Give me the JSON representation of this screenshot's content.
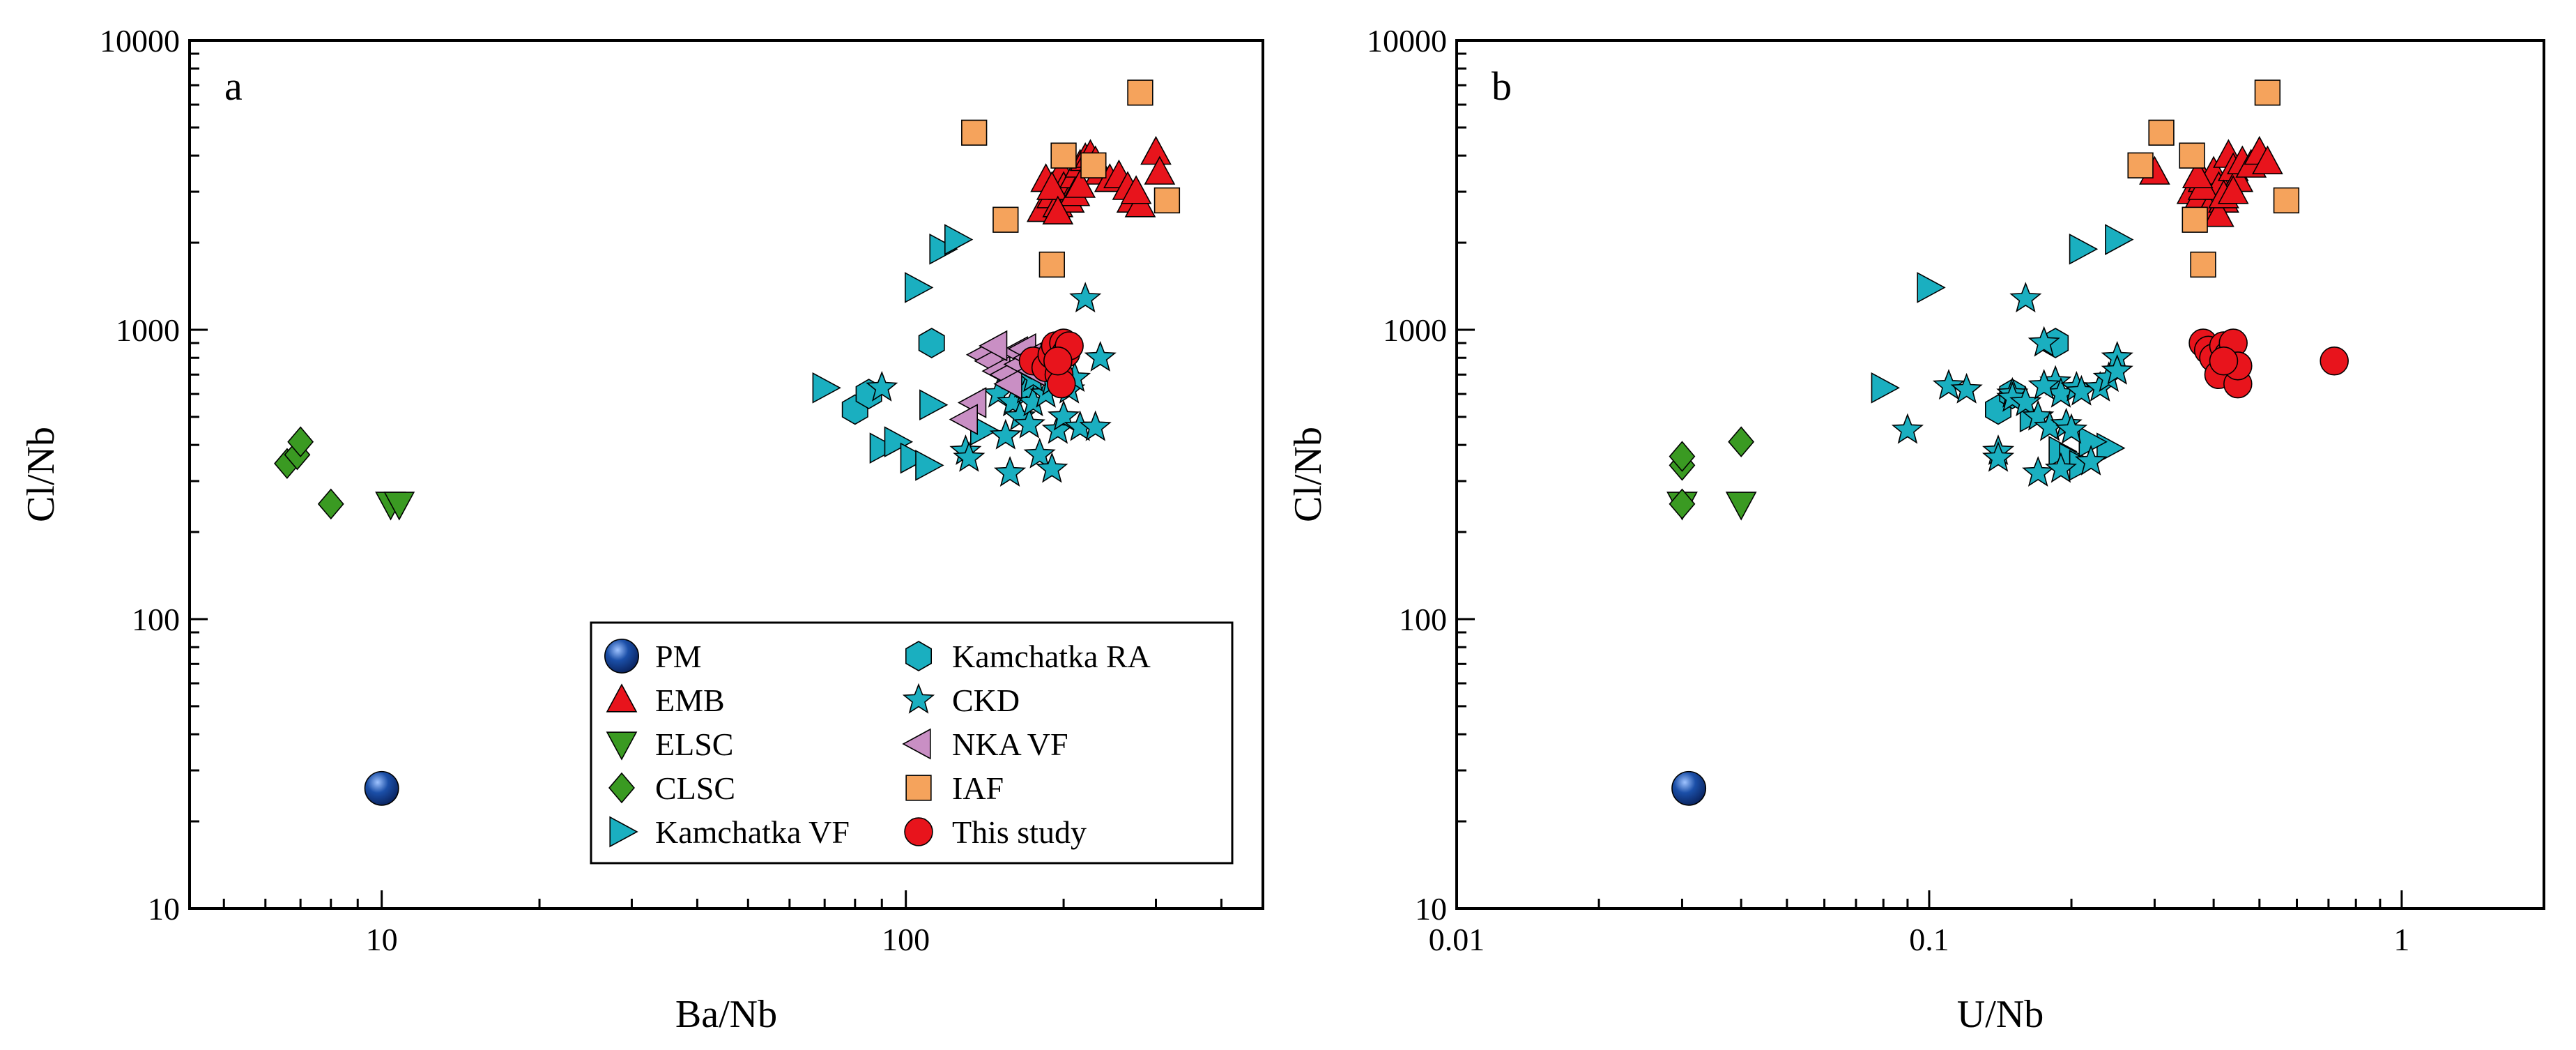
{
  "colors": {
    "PM": "#1b4fa8",
    "EMB": "#e8141c",
    "ELSC": "#3a9a22",
    "CLSC": "#3a9a22",
    "Kamchatka VF": "#1aafc0",
    "Kamchatka RA": "#1aafc0",
    "CKD": "#1aafc0",
    "NKA VF": "#c98fc4",
    "IAF": "#f5a35c",
    "This study": "#e8141c"
  },
  "chart_data": [
    {
      "type": "scatter",
      "panel_label": "a",
      "xlabel": "Ba/Nb",
      "ylabel": "Cl/Nb",
      "xscale": "log",
      "yscale": "log",
      "xlim": [
        4.3,
        480
      ],
      "ylim": [
        10,
        10000
      ],
      "xticks": [
        10,
        100
      ],
      "xticklabels": [
        "10",
        "100"
      ],
      "yticks": [
        10,
        100,
        1000,
        10000
      ],
      "yticklabels": [
        "10",
        "100",
        "1000",
        "10000"
      ],
      "legend": {
        "location": "bottom-right",
        "columns": [
          [
            "PM",
            "EMB",
            "ELSC",
            "CLSC",
            "Kamchatka VF"
          ],
          [
            "Kamchatka RA",
            "CKD",
            "NKA VF",
            "IAF",
            "This study"
          ]
        ]
      },
      "series": [
        {
          "name": "PM",
          "marker": "ball",
          "points": [
            [
              10.0,
              26
            ]
          ]
        },
        {
          "name": "EMB",
          "marker": "triangle-up",
          "points": [
            [
              182,
              2600
            ],
            [
              185,
              3300
            ],
            [
              190,
              2900
            ],
            [
              195,
              2700
            ],
            [
              198,
              3500
            ],
            [
              200,
              3100
            ],
            [
              205,
              2800
            ],
            [
              210,
              3400
            ],
            [
              215,
              3700
            ],
            [
              220,
              3900
            ],
            [
              225,
              4000
            ],
            [
              230,
              3800
            ],
            [
              235,
              3500
            ],
            [
              245,
              3300
            ],
            [
              255,
              3400
            ],
            [
              265,
              3100
            ],
            [
              270,
              2800
            ],
            [
              280,
              2700
            ],
            [
              300,
              4100
            ],
            [
              305,
              3500
            ],
            [
              190,
              3100
            ],
            [
              210,
              2950
            ],
            [
              215,
              3150
            ],
            [
              195,
              2550
            ],
            [
              275,
              3000
            ]
          ]
        },
        {
          "name": "ELSC",
          "marker": "triangle-down",
          "points": [
            [
              10.4,
              250
            ],
            [
              10.8,
              250
            ]
          ]
        },
        {
          "name": "CLSC",
          "marker": "diamond",
          "points": [
            [
              6.6,
              345
            ],
            [
              6.9,
              370
            ],
            [
              7.0,
              410
            ],
            [
              8.0,
              250
            ]
          ]
        },
        {
          "name": "Kamchatka VF",
          "marker": "triangle-right",
          "points": [
            [
              70,
              630
            ],
            [
              90,
              390
            ],
            [
              96,
              410
            ],
            [
              103,
              360
            ],
            [
              105,
              1400
            ],
            [
              110,
              340
            ],
            [
              112,
              550
            ],
            [
              117,
              1900
            ],
            [
              125,
              2050
            ],
            [
              140,
              450
            ]
          ]
        },
        {
          "name": "Kamchatka RA",
          "marker": "hexagon",
          "points": [
            [
              80,
              530
            ],
            [
              85,
              600
            ],
            [
              112,
              900
            ]
          ]
        },
        {
          "name": "CKD",
          "marker": "star",
          "points": [
            [
              90,
              630
            ],
            [
              130,
              380
            ],
            [
              132,
              360
            ],
            [
              150,
              600
            ],
            [
              155,
              430
            ],
            [
              158,
              320
            ],
            [
              160,
              560
            ],
            [
              165,
              500
            ],
            [
              168,
              650
            ],
            [
              170,
              620
            ],
            [
              172,
              470
            ],
            [
              175,
              560
            ],
            [
              180,
              370
            ],
            [
              185,
              600
            ],
            [
              190,
              330
            ],
            [
              195,
              450
            ],
            [
              198,
              830
            ],
            [
              200,
              500
            ],
            [
              205,
              620
            ],
            [
              210,
              680
            ],
            [
              215,
              460
            ],
            [
              220,
              1280
            ],
            [
              230,
              460
            ],
            [
              235,
              800
            ],
            [
              175,
              680
            ],
            [
              190,
              660
            ]
          ]
        },
        {
          "name": "NKA VF",
          "marker": "triangle-left",
          "points": [
            [
              135,
              560
            ],
            [
              140,
              820
            ],
            [
              145,
              780
            ],
            [
              150,
              720
            ],
            [
              155,
              700
            ],
            [
              158,
              650
            ],
            [
              162,
              840
            ],
            [
              165,
              760
            ],
            [
              168,
              860
            ],
            [
              172,
              800
            ],
            [
              175,
              720
            ],
            [
              130,
              490
            ],
            [
              148,
              880
            ]
          ]
        },
        {
          "name": "IAF",
          "marker": "square",
          "points": [
            [
              135,
              4800
            ],
            [
              155,
              2400
            ],
            [
              190,
              1680
            ],
            [
              200,
              4000
            ],
            [
              228,
              3700
            ],
            [
              280,
              6600
            ],
            [
              315,
              2800
            ]
          ]
        },
        {
          "name": "This study",
          "marker": "circle",
          "points": [
            [
              175,
              780
            ],
            [
              185,
              740
            ],
            [
              190,
              820
            ],
            [
              193,
              880
            ],
            [
              196,
              700
            ],
            [
              198,
              650
            ],
            [
              200,
              900
            ],
            [
              202,
              830
            ],
            [
              205,
              880
            ],
            [
              195,
              780
            ]
          ]
        }
      ]
    },
    {
      "type": "scatter",
      "panel_label": "b",
      "xlabel": "U/Nb",
      "ylabel": "Cl/Nb",
      "xscale": "log",
      "yscale": "log",
      "xlim": [
        0.01,
        2.0
      ],
      "ylim": [
        10,
        10000
      ],
      "xticks": [
        0.01,
        0.1,
        1
      ],
      "xticklabels": [
        "0.01",
        "0.1",
        "1"
      ],
      "yticks": [
        10,
        100,
        1000,
        10000
      ],
      "yticklabels": [
        "10",
        "100",
        "1000",
        "10000"
      ],
      "series": [
        {
          "name": "PM",
          "marker": "ball",
          "points": [
            [
              0.031,
              26
            ]
          ]
        },
        {
          "name": "EMB",
          "marker": "triangle-up",
          "points": [
            [
              0.3,
              3500
            ],
            [
              0.36,
              3000
            ],
            [
              0.37,
              2800
            ],
            [
              0.38,
              3300
            ],
            [
              0.39,
              2600
            ],
            [
              0.4,
              3500
            ],
            [
              0.41,
              3100
            ],
            [
              0.42,
              2800
            ],
            [
              0.43,
              4000
            ],
            [
              0.44,
              3600
            ],
            [
              0.45,
              3300
            ],
            [
              0.46,
              3800
            ],
            [
              0.48,
              3700
            ],
            [
              0.5,
              4100
            ],
            [
              0.52,
              3800
            ],
            [
              0.38,
              3100
            ],
            [
              0.41,
              2500
            ],
            [
              0.42,
              2900
            ],
            [
              0.37,
              3400
            ],
            [
              0.44,
              3000
            ]
          ]
        },
        {
          "name": "ELSC",
          "marker": "triangle-down",
          "points": [
            [
              0.03,
              250
            ],
            [
              0.04,
              250
            ]
          ]
        },
        {
          "name": "CLSC",
          "marker": "diamond",
          "points": [
            [
              0.03,
              340
            ],
            [
              0.03,
              365
            ],
            [
              0.04,
              410
            ],
            [
              0.03,
              250
            ]
          ]
        },
        {
          "name": "Kamchatka VF",
          "marker": "triangle-right",
          "points": [
            [
              0.08,
              630
            ],
            [
              0.1,
              1400
            ],
            [
              0.165,
              500
            ],
            [
              0.19,
              380
            ],
            [
              0.2,
              360
            ],
            [
              0.21,
              1900
            ],
            [
              0.24,
              390
            ],
            [
              0.25,
              2050
            ],
            [
              0.21,
              340
            ],
            [
              0.22,
              410
            ]
          ]
        },
        {
          "name": "Kamchatka RA",
          "marker": "hexagon",
          "points": [
            [
              0.14,
              530
            ],
            [
              0.15,
              600
            ],
            [
              0.185,
              900
            ]
          ]
        },
        {
          "name": "CKD",
          "marker": "star",
          "points": [
            [
              0.09,
              450
            ],
            [
              0.11,
              640
            ],
            [
              0.12,
              620
            ],
            [
              0.14,
              380
            ],
            [
              0.14,
              360
            ],
            [
              0.15,
              600
            ],
            [
              0.15,
              580
            ],
            [
              0.16,
              560
            ],
            [
              0.16,
              1280
            ],
            [
              0.17,
              500
            ],
            [
              0.17,
              320
            ],
            [
              0.175,
              900
            ],
            [
              0.18,
              460
            ],
            [
              0.185,
              660
            ],
            [
              0.19,
              600
            ],
            [
              0.19,
              330
            ],
            [
              0.195,
              470
            ],
            [
              0.2,
              450
            ],
            [
              0.205,
              630
            ],
            [
              0.21,
              610
            ],
            [
              0.22,
              350
            ],
            [
              0.23,
              630
            ],
            [
              0.24,
              680
            ],
            [
              0.25,
              800
            ],
            [
              0.25,
              720
            ],
            [
              0.175,
              640
            ]
          ]
        },
        {
          "name": "IAF",
          "marker": "square",
          "points": [
            [
              0.28,
              3700
            ],
            [
              0.31,
              4800
            ],
            [
              0.36,
              4000
            ],
            [
              0.365,
              2400
            ],
            [
              0.38,
              1680
            ],
            [
              0.52,
              6600
            ],
            [
              0.57,
              2800
            ]
          ]
        },
        {
          "name": "This study",
          "marker": "circle",
          "points": [
            [
              0.38,
              900
            ],
            [
              0.39,
              850
            ],
            [
              0.4,
              800
            ],
            [
              0.41,
              700
            ],
            [
              0.42,
              880
            ],
            [
              0.43,
              820
            ],
            [
              0.44,
              900
            ],
            [
              0.45,
              650
            ],
            [
              0.45,
              750
            ],
            [
              0.42,
              780
            ],
            [
              0.72,
              780
            ]
          ]
        }
      ]
    }
  ]
}
